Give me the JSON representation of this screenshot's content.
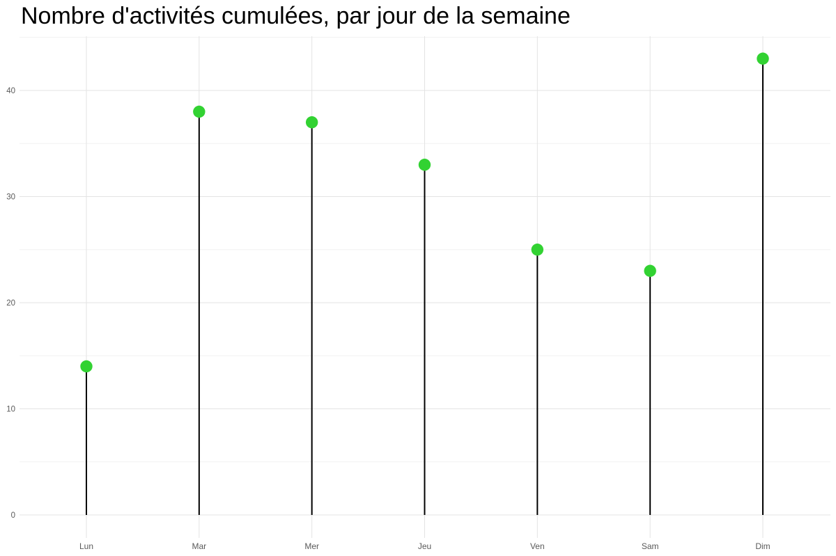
{
  "chart_data": {
    "type": "scatter",
    "variant": "lollipop",
    "title": "Nombre d'activités cumulées, par jour de la semaine",
    "xlabel": "",
    "ylabel": "",
    "categories": [
      "Lun",
      "Mar",
      "Mer",
      "Jeu",
      "Ven",
      "Sam",
      "Dim"
    ],
    "values": [
      14,
      38,
      37,
      33,
      25,
      23,
      43
    ],
    "ylim": [
      -2.2,
      45.2
    ],
    "yticks_major": [
      0,
      10,
      20,
      30,
      40
    ],
    "yticks_minor": [
      5,
      15,
      25,
      35,
      45
    ],
    "grid": true,
    "legend": "none",
    "colors": {
      "marker": "#32d232",
      "stem": "#000000",
      "grid_major": "#e3e3e3",
      "grid_minor": "#f1f1f1",
      "tick_label": "#595959",
      "title": "#000000",
      "background": "#ffffff"
    }
  }
}
